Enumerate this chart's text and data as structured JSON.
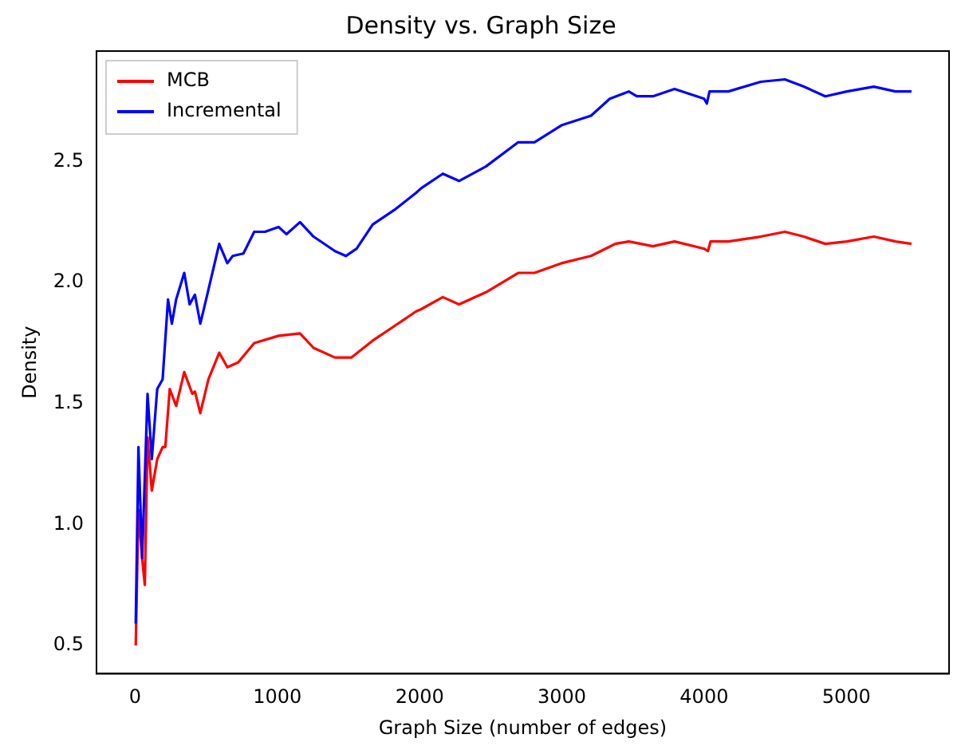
{
  "chart_data": {
    "type": "line",
    "title": "Density vs. Graph Size",
    "xlabel": "Graph Size (number of edges)",
    "ylabel": "Density",
    "xlim": [
      -272,
      5722
    ],
    "ylim": [
      0.383,
      2.957
    ],
    "xticks": [
      0,
      1000,
      2000,
      3000,
      4000,
      5000
    ],
    "yticks": [
      0.5,
      {
        "value": 1.0,
        "label": "1.0"
      },
      1.5,
      {
        "value": 2.0,
        "label": "2.0"
      },
      2.5
    ],
    "grid": false,
    "legend": "top left",
    "marker": "none",
    "line_style": "solid",
    "series": [
      {
        "name": "MCB",
        "color": "#ff0000",
        "x": [
          4,
          23,
          49,
          68,
          87,
          117,
          155,
          193,
          212,
          243,
          288,
          345,
          402,
          420,
          458,
          515,
          591,
          648,
          724,
          837,
          1008,
          1159,
          1254,
          1405,
          1519,
          1670,
          1822,
          1973,
          2011,
          2163,
          2277,
          2466,
          2693,
          2807,
          2997,
          3205,
          3375,
          3470,
          3640,
          3792,
          4000,
          4027,
          4045,
          4170,
          4398,
          4568,
          4701,
          4852,
          5004,
          5193,
          5345,
          5458
        ],
        "values": [
          0.5,
          1.06,
          0.86,
          0.75,
          1.36,
          1.14,
          1.27,
          1.32,
          1.32,
          1.56,
          1.49,
          1.63,
          1.54,
          1.55,
          1.46,
          1.6,
          1.71,
          1.65,
          1.67,
          1.75,
          1.78,
          1.79,
          1.73,
          1.69,
          1.69,
          1.76,
          1.82,
          1.88,
          1.89,
          1.94,
          1.91,
          1.96,
          2.04,
          2.04,
          2.08,
          2.11,
          2.16,
          2.17,
          2.15,
          2.17,
          2.14,
          2.13,
          2.17,
          2.17,
          2.19,
          2.21,
          2.19,
          2.16,
          2.17,
          2.19,
          2.17,
          2.16
        ]
      },
      {
        "name": "Incremental",
        "color": "#0000ff",
        "x": [
          4,
          23,
          49,
          87,
          117,
          155,
          193,
          231,
          258,
          288,
          345,
          383,
          420,
          458,
          515,
          591,
          648,
          686,
          761,
          837,
          913,
          1008,
          1064,
          1159,
          1254,
          1405,
          1481,
          1557,
          1670,
          1822,
          1973,
          2011,
          2163,
          2277,
          2466,
          2693,
          2807,
          2997,
          3205,
          3337,
          3470,
          3527,
          3640,
          3792,
          4000,
          4019,
          4038,
          4170,
          4398,
          4568,
          4701,
          4852,
          5004,
          5193,
          5345,
          5458
        ],
        "values": [
          0.59,
          1.32,
          0.86,
          1.54,
          1.27,
          1.56,
          1.6,
          1.93,
          1.83,
          1.93,
          2.04,
          1.91,
          1.95,
          1.83,
          1.97,
          2.16,
          2.08,
          2.11,
          2.12,
          2.21,
          2.21,
          2.23,
          2.2,
          2.25,
          2.19,
          2.13,
          2.11,
          2.14,
          2.24,
          2.3,
          2.37,
          2.39,
          2.45,
          2.42,
          2.48,
          2.58,
          2.58,
          2.65,
          2.69,
          2.76,
          2.79,
          2.77,
          2.77,
          2.8,
          2.76,
          2.74,
          2.79,
          2.79,
          2.83,
          2.84,
          2.81,
          2.77,
          2.79,
          2.81,
          2.79,
          2.79
        ]
      }
    ]
  }
}
